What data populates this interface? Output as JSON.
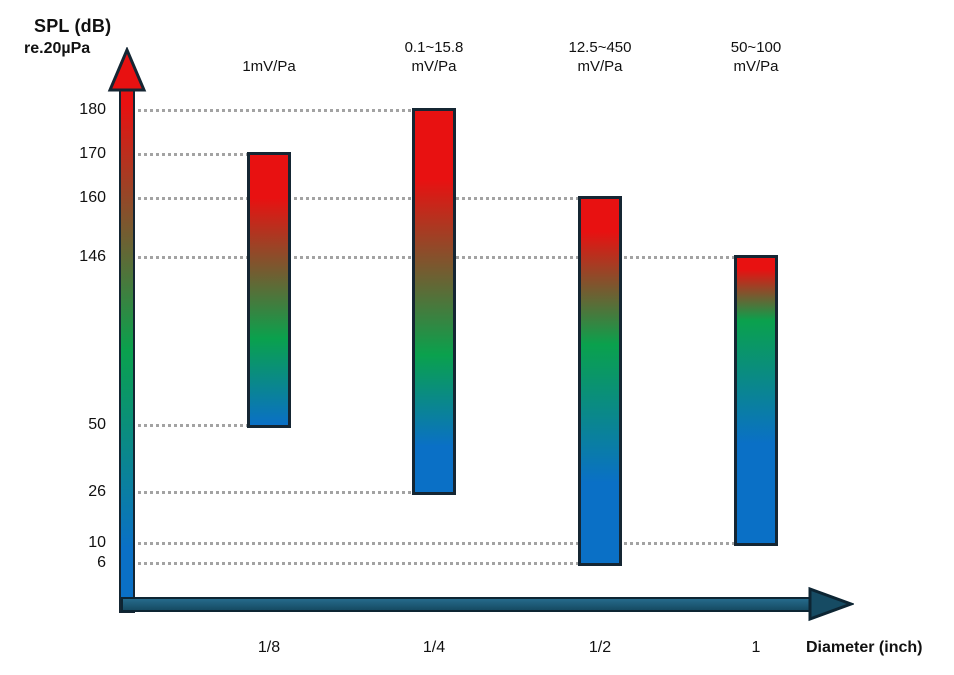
{
  "y_axis": {
    "title_line1": "SPL (dB)",
    "title_line2": "re.20µPa",
    "ticks": [
      180,
      170,
      160,
      146,
      50,
      26,
      10,
      6
    ]
  },
  "x_axis": {
    "title": "Diameter (inch)",
    "categories": [
      "1/8",
      "1/4",
      "1/2",
      "1"
    ]
  },
  "chart_data": {
    "type": "bar",
    "subtype": "floating-range-bars",
    "xlabel": "Diameter (inch)",
    "ylabel": "SPL (dB) re.20µPa",
    "categories": [
      "1/8",
      "1/4",
      "1/2",
      "1"
    ],
    "yticks": [
      180,
      170,
      160,
      146,
      50,
      26,
      10,
      6
    ],
    "grid": "dotted horizontal, each gridline runs from y-axis to the bar whose range endpoint matches it",
    "legend": "none",
    "y_scale_note": "schematic non-linear spacing",
    "bars": [
      {
        "diameter_inch": "1/8",
        "sensitivity_label": "1mV/Pa",
        "spl_min_db": 50,
        "spl_max_db": 170
      },
      {
        "diameter_inch": "1/4",
        "sensitivity_label": "0.1~15.8\nmV/Pa",
        "spl_min_db": 26,
        "spl_max_db": 180
      },
      {
        "diameter_inch": "1/2",
        "sensitivity_label": "12.5~450\nmV/Pa",
        "spl_min_db": 6,
        "spl_max_db": 160
      },
      {
        "diameter_inch": "1",
        "sensitivity_label": "50~100\nmV/Pa",
        "spl_min_db": 10,
        "spl_max_db": 146
      }
    ]
  },
  "colors": {
    "bar_red": "#e81111",
    "bar_green": "#0aa14d",
    "bar_blue": "#0a70c6",
    "bar_outline": "#152633",
    "axis_teal_light": "#256a8b",
    "axis_teal_dark": "#164b63",
    "axis_outline": "#0d2533",
    "gridline": "#a3a3a3",
    "text": "#111111"
  }
}
